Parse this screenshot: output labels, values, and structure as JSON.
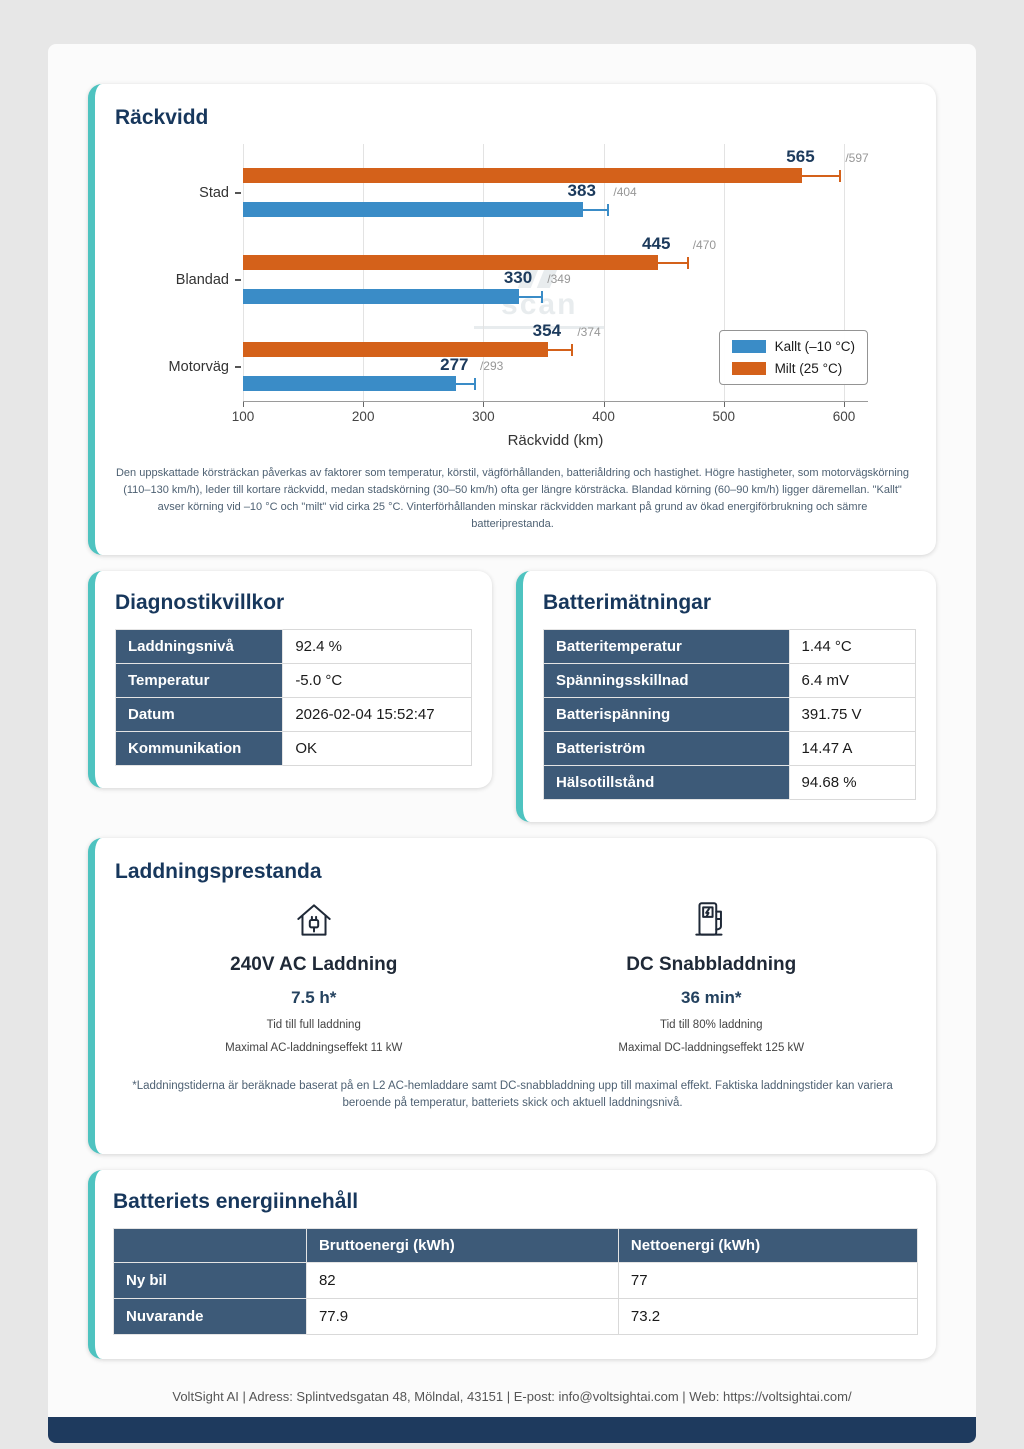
{
  "report": {
    "range_section": {
      "title": "Räckvidd",
      "watermark": "scan",
      "description": "Den uppskattade körsträckan påverkas av faktorer som temperatur, körstil, vägförhållanden, batteriåldring och hastighet. Högre hastigheter, som motorvägskörning (110–130 km/h), leder till kortare räckvidd, medan stadskörning (30–50 km/h) ofta ger längre körsträcka. Blandad körning (60–90 km/h) ligger däremellan. \"Kallt\" avser körning vid –10 °C och \"milt\" vid cirka 25 °C. Vinterförhållanden minskar räckvidden markant på grund av ökad energiförbrukning och sämre batteriprestanda."
    },
    "diagnostics": {
      "title": "Diagnostikvillkor",
      "rows": [
        {
          "label": "Laddningsnivå",
          "value": "92.4 %"
        },
        {
          "label": "Temperatur",
          "value": "-5.0 °C"
        },
        {
          "label": "Datum",
          "value": "2026-02-04 15:52:47"
        },
        {
          "label": "Kommunikation",
          "value": "OK"
        }
      ]
    },
    "battery_measurements": {
      "title": "Batterimätningar",
      "rows": [
        {
          "label": "Batteritemperatur",
          "value": "1.44 °C"
        },
        {
          "label": "Spänningsskillnad",
          "value": "6.4 mV"
        },
        {
          "label": "Batterispänning",
          "value": "391.75 V"
        },
        {
          "label": "Batteriström",
          "value": "14.47 A"
        },
        {
          "label": "Hälsotillstånd",
          "value": "94.68 %"
        }
      ]
    },
    "charging": {
      "title": "Laddningsprestanda",
      "ac": {
        "title": "240V AC Laddning",
        "time": "7.5 h*",
        "line1": "Tid till full laddning",
        "line2": "Maximal AC-laddningseffekt 11 kW"
      },
      "dc": {
        "title": "DC Snabbladdning",
        "time": "36 min*",
        "line1": "Tid till 80% laddning",
        "line2": "Maximal DC-laddningseffekt 125 kW"
      },
      "footnote": "*Laddningstiderna är beräknade baserat på en L2 AC-hemladdare samt DC-snabbladdning upp till maximal effekt. Faktiska laddningstider kan variera beroende på temperatur, batteriets skick och aktuell laddningsnivå."
    },
    "energy": {
      "title": "Batteriets energiinnehåll",
      "columns": [
        "",
        "Bruttoenergi (kWh)",
        "Nettoenergi (kWh)"
      ],
      "rows": [
        {
          "label": "Ny bil",
          "values": [
            "82",
            "77"
          ]
        },
        {
          "label": "Nuvarande",
          "values": [
            "77.9",
            "73.2"
          ]
        }
      ]
    },
    "footer": "VoltSight AI | Adress: Splintvedsgatan 48, Mölndal, 43151 | E-post: info@voltsightai.com | Web: https://voltsightai.com/"
  },
  "chart_data": {
    "type": "bar",
    "orientation": "horizontal",
    "title": "Räckvidd",
    "xlabel": "Räckvidd (km)",
    "categories": [
      "Stad",
      "Blandad",
      "Motorväg"
    ],
    "series": [
      {
        "name": "Milt (25 °C)",
        "color": "#d4611a",
        "values": [
          565,
          445,
          354
        ],
        "upper": [
          597,
          470,
          374
        ]
      },
      {
        "name": "Kallt (–10 °C)",
        "color": "#3a8cc7",
        "values": [
          383,
          330,
          277
        ],
        "upper": [
          404,
          349,
          293
        ]
      }
    ],
    "xlim": [
      100,
      620
    ],
    "xticks": [
      100,
      200,
      300,
      400,
      500,
      600
    ],
    "grid": true,
    "legend_position": "center right",
    "legend": [
      {
        "label": "Kallt (–10 °C)",
        "color": "#3a8cc7"
      },
      {
        "label": "Milt (25 °C)",
        "color": "#d4611a"
      }
    ]
  }
}
